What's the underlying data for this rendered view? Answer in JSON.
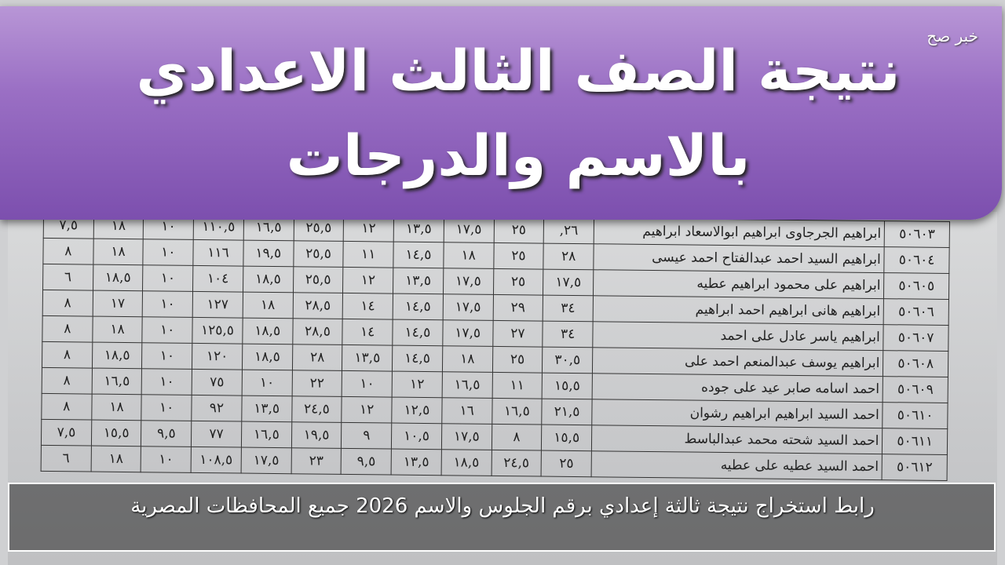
{
  "header": {
    "title_line1": "نتيجة الصف الثالث الاعدادي",
    "title_line2": "بالاسم والدرجات",
    "watermark": "خبر صح"
  },
  "caption": "رابط استخراج نتيجة ثالثة إعدادي برقم الجلوس والاسم 2026 جميع المحافظات المصرية",
  "table": {
    "rows": [
      {
        "seat": "٥٠٦٠٣",
        "name": "ابراهيم الجرجاوى ابراهيم ابوالاسعاد ابراهيم",
        "scores": [
          "٢٦,",
          "٢٥",
          "١٧,٥",
          "١٣,٥",
          "١٢",
          "٢٥,٥",
          "١٦,٥",
          "١١٠,٥",
          "١٠",
          "١٨",
          "٧,٥"
        ]
      },
      {
        "seat": "٥٠٦٠٤",
        "name": "ابراهيم السيد احمد عبدالفتاح احمد عيسى",
        "scores": [
          "٢٨",
          "٢٥",
          "١٨",
          "١٤,٥",
          "١١",
          "٢٥,٥",
          "١٩,٥",
          "١١٦",
          "١٠",
          "١٨",
          "٨"
        ]
      },
      {
        "seat": "٥٠٦٠٥",
        "name": "ابراهيم على محمود ابراهيم عطيه",
        "scores": [
          "١٧,٥",
          "٢٥",
          "١٧,٥",
          "١٣,٥",
          "١٢",
          "٢٥,٥",
          "١٨,٥",
          "١٠٤",
          "١٠",
          "١٨,٥",
          "٦"
        ]
      },
      {
        "seat": "٥٠٦٠٦",
        "name": "ابراهيم هانى ابراهيم احمد ابراهيم",
        "scores": [
          "٣٤",
          "٢٩",
          "١٧,٥",
          "١٤,٥",
          "١٤",
          "٢٨,٥",
          "١٨",
          "١٢٧",
          "١٠",
          "١٧",
          "٨"
        ]
      },
      {
        "seat": "٥٠٦٠٧",
        "name": "ابراهيم ياسر عادل على احمد",
        "scores": [
          "٣٤",
          "٢٧",
          "١٧,٥",
          "١٤,٥",
          "١٤",
          "٢٨,٥",
          "١٨,٥",
          "١٢٥,٥",
          "١٠",
          "١٨",
          "٨"
        ]
      },
      {
        "seat": "٥٠٦٠٨",
        "name": "ابراهيم يوسف عبدالمنعم احمد على",
        "scores": [
          "٣٠,٥",
          "٢٥",
          "١٨",
          "١٤,٥",
          "١٣,٥",
          "٢٨",
          "١٨,٥",
          "١٢٠",
          "١٠",
          "١٨,٥",
          "٨"
        ]
      },
      {
        "seat": "٥٠٦٠٩",
        "name": "احمد اسامه صابر عيد على جوده",
        "scores": [
          "١٥,٥",
          "١١",
          "١٦,٥",
          "١٢",
          "١٠",
          "٢٢",
          "١٠",
          "٧٥",
          "١٠",
          "١٦,٥",
          "٨"
        ]
      },
      {
        "seat": "٥٠٦١٠",
        "name": "احمد السيد ابراهيم ابراهيم رشوان",
        "scores": [
          "٢١,٥",
          "١٦,٥",
          "١٦",
          "١٢,٥",
          "١٢",
          "٢٤,٥",
          "١٣,٥",
          "٩٢",
          "١٠",
          "١٨",
          "٨"
        ]
      },
      {
        "seat": "٥٠٦١١",
        "name": "احمد السيد شحته محمد عبدالباسط",
        "scores": [
          "١٥,٥",
          "٨",
          "١٧,٥",
          "١٠,٥",
          "٩",
          "١٩,٥",
          "١٦,٥",
          "٧٧",
          "٩,٥",
          "١٥,٥",
          "٧,٥"
        ]
      },
      {
        "seat": "٥٠٦١٢",
        "name": "احمد السيد عطيه على عطيه",
        "scores": [
          "٢٥",
          "٢٤,٥",
          "١٨,٥",
          "١٣,٥",
          "٩,٥",
          "٢٣",
          "١٧,٥",
          "١٠٨,٥",
          "١٠",
          "١٨",
          "٦"
        ]
      }
    ]
  }
}
